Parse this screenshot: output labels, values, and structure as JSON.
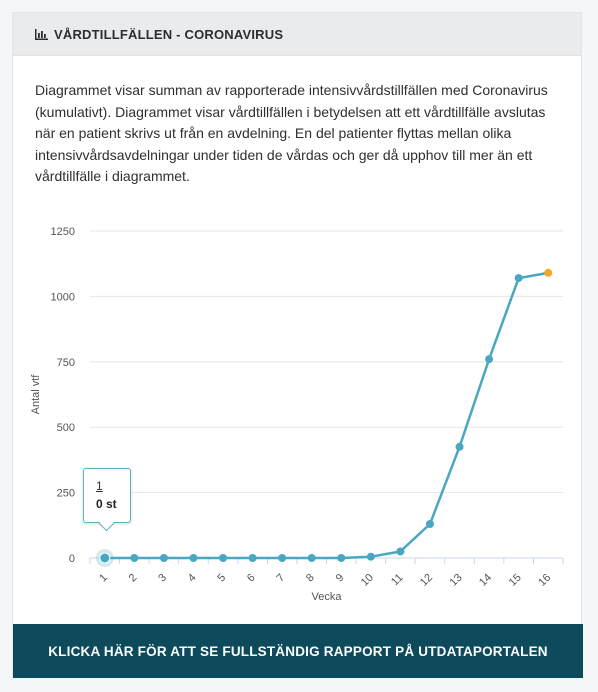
{
  "header": {
    "title": "VÅRDTILLFÄLLEN - CORONAVIRUS",
    "icon": "bar-chart-icon"
  },
  "description": "Diagrammet visar summan av rapporterade intensivvårdstillfällen med Coronavirus (kumulativt). Diagrammet visar vårdtillfällen i betydelsen att ett vårdtillfälle avslutas när en patient skrivs ut från en avdelning. En del patienter flyttas mellan olika intensivvårdsavdelningar under tiden de vårdas och ger då upphov till mer än ett vårdtillfälle i diagrammet.",
  "tooltip": {
    "week": "1",
    "value": "0 st"
  },
  "cta": {
    "label": "KLICKA HÄR FÖR ATT SE FULLSTÄNDIG RAPPORT PÅ UTDATAPORTALEN"
  },
  "colors": {
    "line": "#4aa7c2",
    "highlight": "#f5a623",
    "cta_bg": "#0d4a5c"
  },
  "chart_data": {
    "type": "line",
    "xlabel": "Vecka",
    "ylabel": "Antal vtf",
    "ylim": [
      0,
      1250
    ],
    "yticks": [
      0,
      250,
      500,
      750,
      1000,
      1250
    ],
    "categories": [
      "1",
      "2",
      "3",
      "4",
      "5",
      "6",
      "7",
      "8",
      "9",
      "10",
      "11",
      "12",
      "13",
      "14",
      "15",
      "16"
    ],
    "series": [
      {
        "values": [
          0,
          0,
          0,
          0,
          0,
          0,
          0,
          0,
          0,
          5,
          25,
          130,
          425,
          760,
          1070,
          1090
        ]
      }
    ],
    "grid": true,
    "legend": "none"
  }
}
